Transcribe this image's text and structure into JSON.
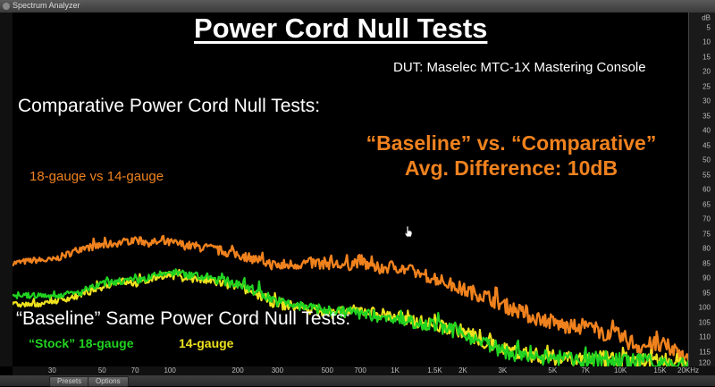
{
  "window": {
    "title": "Spectrum Analyzer"
  },
  "bottom_bar": {
    "buttons": [
      "Presets",
      "Options"
    ]
  },
  "colors": {
    "orange": "#f0821e",
    "green": "#21d321",
    "yellow": "#eee21e",
    "white": "#ffffff"
  },
  "chart_data": {
    "type": "line",
    "title": "Power Cord Null Tests",
    "subtitle": "DUT: Maselec MTC-1X Mastering Console",
    "section_label": "Comparative Power Cord Null Tests:",
    "highlight_lines": [
      "“Baseline” vs. “Comparative”",
      "Avg. Difference: 10dB"
    ],
    "lower_section_label": "“Baseline” Same Power Cord Null Tests:",
    "xscale": "log",
    "xlim": [
      20,
      20000
    ],
    "x_ticks": [
      30,
      50,
      70,
      100,
      200,
      300,
      500,
      700,
      1000,
      1500,
      2000,
      3000,
      5000,
      7000,
      10000,
      15000,
      20000
    ],
    "x_tick_labels": [
      "30",
      "50",
      "70",
      "100",
      "200",
      "300",
      "500",
      "700",
      "1K",
      "1.5K",
      "2K",
      "3K",
      "5K",
      "7K",
      "10K",
      "15K",
      "20KHz"
    ],
    "ylim": [
      -120,
      0
    ],
    "y_unit": "dB",
    "y_ticks": [
      0,
      -5,
      -10,
      -15,
      -20,
      -25,
      -30,
      -35,
      -40,
      -45,
      -50,
      -55,
      -60,
      -65,
      -70,
      -75,
      -80,
      -85,
      -90,
      -95,
      -100,
      -105,
      -110,
      -115,
      -120
    ],
    "grid": false,
    "legend_position": "bottom-left",
    "series": [
      {
        "name": "18-gauge vs 14-gauge",
        "color": "#f0821e",
        "x": [
          20,
          25,
          30,
          35,
          40,
          50,
          60,
          70,
          80,
          90,
          100,
          120,
          150,
          200,
          250,
          300,
          400,
          500,
          600,
          700,
          800,
          1000,
          1200,
          1500,
          2000,
          2500,
          3000,
          4000,
          5000,
          6000,
          7000,
          8000,
          10000,
          12000,
          15000,
          20000
        ],
        "y": [
          -85,
          -84,
          -84,
          -82,
          -80,
          -79,
          -78,
          -77,
          -78,
          -78,
          -78,
          -79,
          -80,
          -82,
          -84,
          -86,
          -85,
          -85,
          -86,
          -84,
          -87,
          -86,
          -88,
          -90,
          -94,
          -96,
          -99,
          -103,
          -105,
          -107,
          -106,
          -108,
          -110,
          -113,
          -113,
          -116
        ]
      },
      {
        "name": "“Stock” 18-gauge",
        "color": "#21d321",
        "x": [
          20,
          25,
          30,
          40,
          50,
          60,
          70,
          80,
          90,
          100,
          120,
          150,
          200,
          250,
          300,
          400,
          500,
          700,
          1000,
          1500,
          2000,
          2500,
          3000,
          4000,
          5000,
          7000,
          10000,
          15000,
          20000
        ],
        "y": [
          -96,
          -96,
          -96,
          -95,
          -92,
          -91,
          -91,
          -90,
          -89,
          -88,
          -89,
          -90,
          -92,
          -95,
          -98,
          -100,
          -101,
          -102,
          -104,
          -106,
          -109,
          -112,
          -115,
          -117,
          -117,
          -118,
          -118,
          -119,
          -120
        ]
      },
      {
        "name": "14-gauge",
        "color": "#eee21e",
        "x": [
          20,
          25,
          30,
          40,
          50,
          60,
          70,
          80,
          90,
          100,
          120,
          150,
          200,
          250,
          300,
          400,
          500,
          700,
          1000,
          1500,
          2000,
          2500,
          3000,
          4000,
          5000,
          7000,
          10000,
          15000,
          20000
        ],
        "y": [
          -99,
          -99,
          -98,
          -96,
          -93,
          -91,
          -92,
          -91,
          -89,
          -89,
          -90,
          -91,
          -93,
          -96,
          -99,
          -100,
          -102,
          -101,
          -103,
          -106,
          -108,
          -112,
          -114,
          -116,
          -117,
          -117,
          -118,
          -118,
          -119
        ]
      }
    ]
  }
}
